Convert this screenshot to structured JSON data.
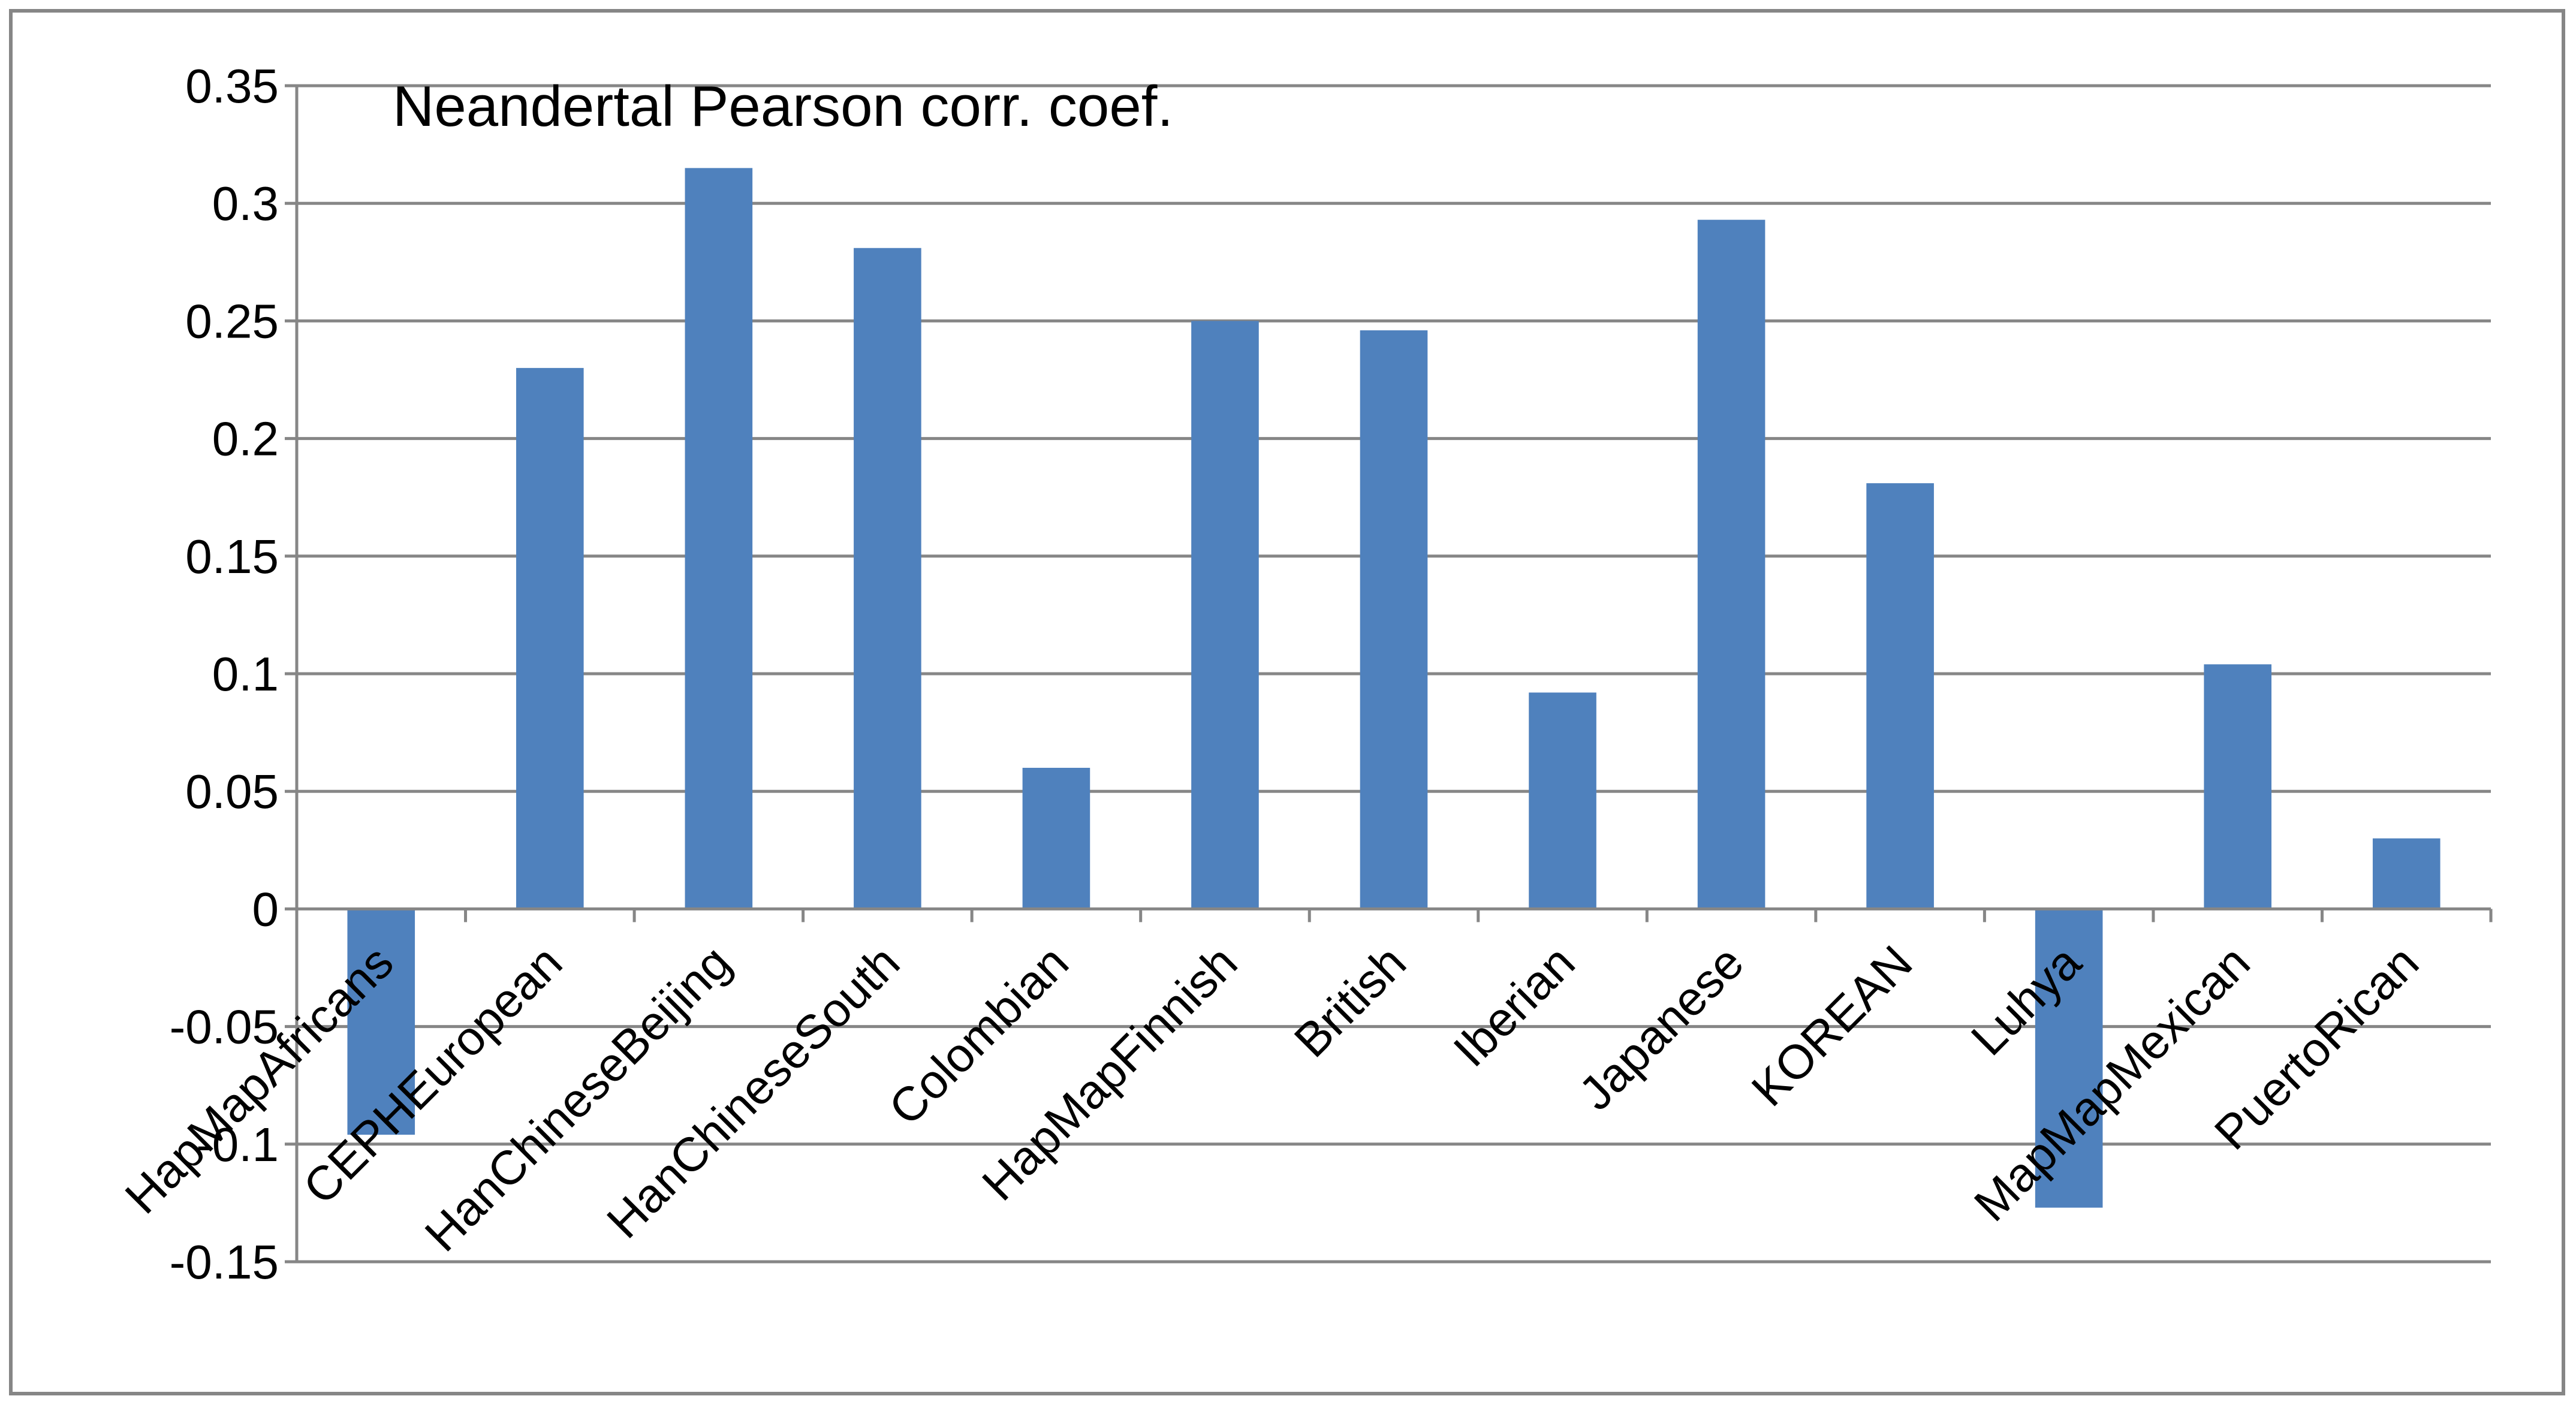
{
  "chart_data": {
    "type": "bar",
    "title": "Neandertal Pearson corr. coef.",
    "xlabel": "",
    "ylabel": "",
    "categories": [
      "HapMapAfricans",
      "CEPHEuropean",
      "HanChineseBeijing",
      "HanChineseSouth",
      "Colombian",
      "HapMapFinnish",
      "British",
      "Iberian",
      "Japanese",
      "KOREAN",
      "Luhya",
      "MapMapMexican",
      "PuertoRican"
    ],
    "values": [
      -0.096,
      0.23,
      0.315,
      0.281,
      0.06,
      0.25,
      0.246,
      0.092,
      0.293,
      0.181,
      -0.127,
      0.104,
      0.03
    ],
    "ylim": [
      -0.15,
      0.35
    ],
    "yticks": [
      0.35,
      0.3,
      0.25,
      0.2,
      0.15,
      0.1,
      0.05,
      0,
      -0.05,
      -0.1,
      -0.15
    ],
    "ytick_labels": [
      "0.35",
      "0.3",
      "0.25",
      "0.2",
      "0.15",
      "0.1",
      "0.05",
      "0",
      "-0.05",
      "-0.1",
      "-0.15"
    ],
    "grid": true,
    "legend": "none",
    "colors": {
      "bar": "#4f81bd",
      "grid": "#868686",
      "axis": "#868686",
      "frame": "#868686"
    }
  }
}
